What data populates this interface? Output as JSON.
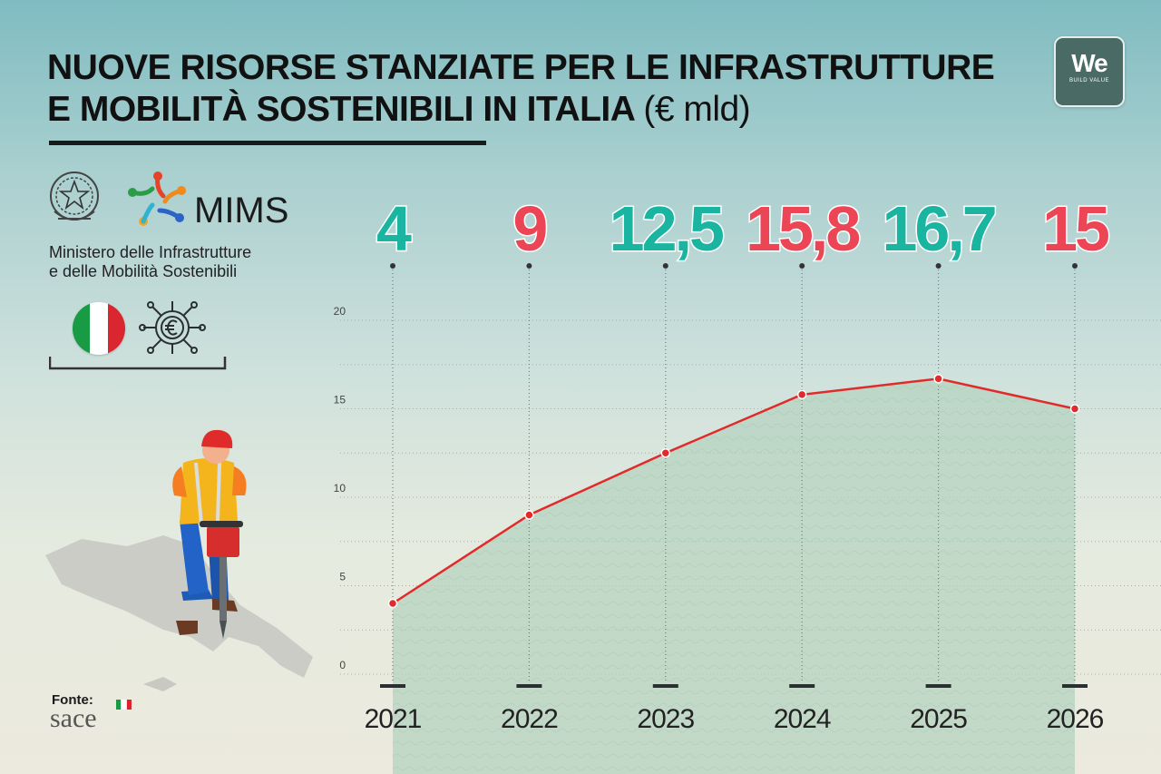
{
  "header": {
    "title_line1": "NUOVE RISORSE STANZIATE PER LE INFRASTRUTTURE",
    "title_line2": "E MOBILITÀ SOSTENIBILI IN ITALIA",
    "title_unit": "(€ mld)"
  },
  "brand": {
    "big": "We",
    "small": "BUILD VALUE"
  },
  "ministry": {
    "acronym": "MIMS",
    "name_line1": "Ministero delle Infrastrutture",
    "name_line2": "e delle Mobilità Sostenibili"
  },
  "source": {
    "label": "Fonte:",
    "name": "sace"
  },
  "icons": [
    "italian-republic-emblem-icon",
    "mims-logo-icon",
    "italy-flag-icon",
    "euro-network-icon",
    "worker-jackhammer-icon",
    "italy-map-icon"
  ],
  "colors": {
    "teal": "#19b5a0",
    "red": "#ec4656",
    "line": "#e12a2a",
    "fill": "#b6d3c0"
  },
  "chart_data": {
    "type": "area",
    "title": "NUOVE RISORSE STANZIATE PER LE INFRASTRUTTURE E MOBILITÀ SOSTENIBILI IN ITALIA (€ mld)",
    "x": [
      "2021",
      "2022",
      "2023",
      "2024",
      "2025",
      "2026"
    ],
    "values": [
      4,
      9,
      12.5,
      15.8,
      16.7,
      15
    ],
    "value_labels": [
      "4",
      "9",
      "12,5",
      "15,8",
      "16,7",
      "15"
    ],
    "label_colors": [
      "teal",
      "red",
      "teal",
      "red",
      "teal",
      "red"
    ],
    "yticks": [
      0,
      5,
      10,
      15,
      20
    ],
    "ylim": [
      0,
      20
    ],
    "grid": true,
    "xlabel": "",
    "ylabel": ""
  }
}
